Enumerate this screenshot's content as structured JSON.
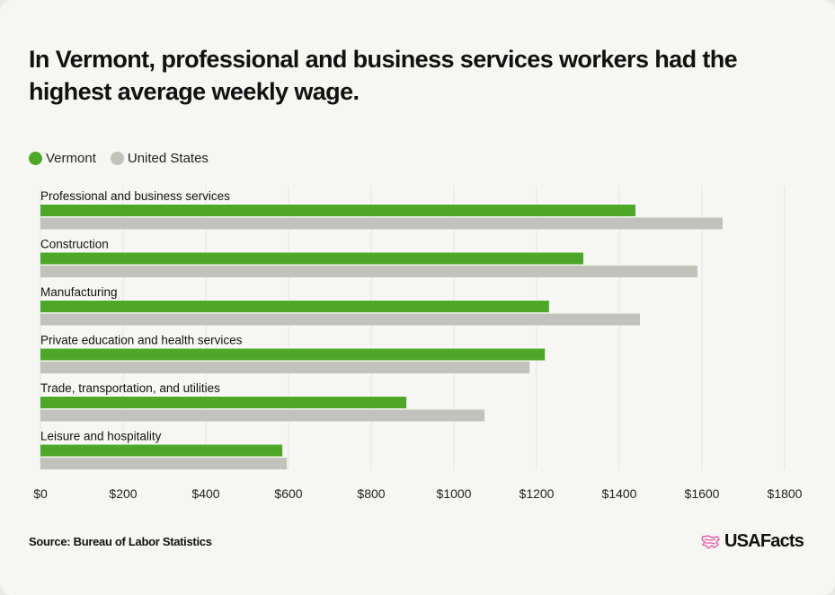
{
  "chart_data": {
    "type": "bar",
    "orientation": "horizontal",
    "title": "In Vermont, professional and business services workers had the highest average weekly wage.",
    "categories": [
      "Professional and business services",
      "Construction",
      "Manufacturing",
      "Private education and health services",
      "Trade, transportation, and utilities",
      "Leisure and hospitality"
    ],
    "series": [
      {
        "name": "Vermont",
        "color": "#4fa72a",
        "values": [
          1439,
          1313,
          1230,
          1220,
          885,
          585
        ]
      },
      {
        "name": "United States",
        "color": "#c2c2bc",
        "values": [
          1650,
          1589,
          1450,
          1183,
          1074,
          596
        ]
      }
    ],
    "xlim": [
      0,
      1800
    ],
    "xticks": [
      0,
      200,
      400,
      600,
      800,
      1000,
      1200,
      1400,
      1600,
      1800
    ],
    "xtick_labels": [
      "$0",
      "$200",
      "$400",
      "$600",
      "$800",
      "$1000",
      "$1200",
      "$1400",
      "$1600",
      "$1800"
    ],
    "xlabel": "",
    "ylabel": "",
    "grid": true,
    "legend_position": "top-left"
  },
  "footer": {
    "source": "Source: Bureau of Labor Statistics",
    "brand": "USAFacts",
    "brand_color": "#e85aa8"
  }
}
